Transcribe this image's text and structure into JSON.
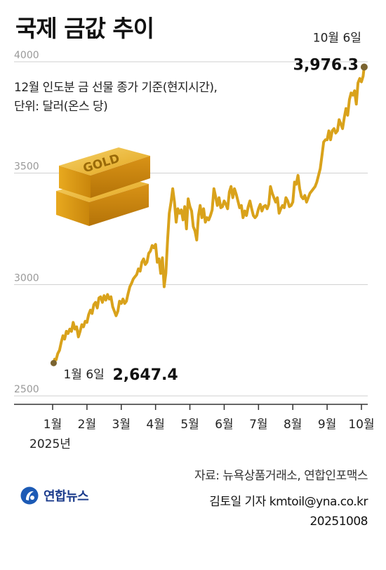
{
  "title": "국제 금값 추이",
  "subtitle_lines": [
    "12월 인도분 금 선물 종가 기준(현지시간),",
    "단위: 달러(온스 당)"
  ],
  "gold_bar_text": "GOLD",
  "source": "자료: 뉴욕상품거래소, 연합인포맥스",
  "reporter": "김토일 기자 kmtoil@yna.co.kr",
  "date": "20251008",
  "logo_text": "연합뉴스",
  "colors": {
    "line": "#d9a21b",
    "endpoint": "#7a6330",
    "grid": "#cfcfcf",
    "axis": "#333333"
  },
  "chart_data": {
    "type": "line",
    "title": "국제 금값 추이",
    "ylim": [
      2500,
      4000
    ],
    "yticks": [
      2500,
      3000,
      3500,
      4000
    ],
    "ytick_labels": [
      "2500",
      "3000",
      "3500",
      "4000"
    ],
    "xtick_labels": [
      "1월",
      "2월",
      "3월",
      "4월",
      "5월",
      "6월",
      "7월",
      "8월",
      "9월",
      "10월"
    ],
    "x_year_label": "2025년",
    "grid": true,
    "annotations": {
      "start": {
        "date_label": "1월 6일",
        "value_label": "2,647.4",
        "value": 2647.4
      },
      "end": {
        "date_label": "10월 6일",
        "value_label": "3,976.3",
        "value": 3976.3
      }
    },
    "series": [
      {
        "values": [
          [
            1.03,
            2647.4
          ],
          [
            1.06,
            2665
          ],
          [
            1.1,
            2662
          ],
          [
            1.15,
            2690
          ],
          [
            1.2,
            2705
          ],
          [
            1.25,
            2740
          ],
          [
            1.3,
            2770
          ],
          [
            1.35,
            2755
          ],
          [
            1.4,
            2790
          ],
          [
            1.45,
            2780
          ],
          [
            1.5,
            2800
          ],
          [
            1.55,
            2790
          ],
          [
            1.6,
            2830
          ],
          [
            1.65,
            2800
          ],
          [
            1.7,
            2810
          ],
          [
            1.75,
            2765
          ],
          [
            1.8,
            2790
          ],
          [
            1.85,
            2820
          ],
          [
            1.9,
            2810
          ],
          [
            1.95,
            2835
          ],
          [
            2.0,
            2830
          ],
          [
            2.05,
            2865
          ],
          [
            2.1,
            2885
          ],
          [
            2.15,
            2870
          ],
          [
            2.2,
            2910
          ],
          [
            2.25,
            2920
          ],
          [
            2.3,
            2895
          ],
          [
            2.35,
            2940
          ],
          [
            2.4,
            2945
          ],
          [
            2.45,
            2920
          ],
          [
            2.5,
            2950
          ],
          [
            2.55,
            2930
          ],
          [
            2.6,
            2955
          ],
          [
            2.65,
            2935
          ],
          [
            2.7,
            2945
          ],
          [
            2.75,
            2900
          ],
          [
            2.8,
            2880
          ],
          [
            2.85,
            2860
          ],
          [
            2.9,
            2880
          ],
          [
            2.95,
            2925
          ],
          [
            3.0,
            2915
          ],
          [
            3.05,
            2935
          ],
          [
            3.1,
            2915
          ],
          [
            3.15,
            2925
          ],
          [
            3.2,
            2960
          ],
          [
            3.25,
            2990
          ],
          [
            3.3,
            3005
          ],
          [
            3.35,
            3025
          ],
          [
            3.4,
            3035
          ],
          [
            3.45,
            3045
          ],
          [
            3.5,
            3070
          ],
          [
            3.55,
            3060
          ],
          [
            3.6,
            3100
          ],
          [
            3.65,
            3115
          ],
          [
            3.7,
            3090
          ],
          [
            3.75,
            3100
          ],
          [
            3.8,
            3140
          ],
          [
            3.85,
            3150
          ],
          [
            3.9,
            3175
          ],
          [
            3.95,
            3165
          ],
          [
            4.0,
            3180
          ],
          [
            4.05,
            3100
          ],
          [
            4.1,
            3115
          ],
          [
            4.15,
            3050
          ],
          [
            4.2,
            3120
          ],
          [
            4.25,
            2990
          ],
          [
            4.3,
            3050
          ],
          [
            4.35,
            3200
          ],
          [
            4.4,
            3320
          ],
          [
            4.45,
            3370
          ],
          [
            4.5,
            3430
          ],
          [
            4.55,
            3370
          ],
          [
            4.6,
            3280
          ],
          [
            4.65,
            3340
          ],
          [
            4.7,
            3320
          ],
          [
            4.75,
            3335
          ],
          [
            4.8,
            3290
          ],
          [
            4.85,
            3350
          ],
          [
            4.9,
            3250
          ],
          [
            4.95,
            3385
          ],
          [
            5.0,
            3350
          ],
          [
            5.05,
            3330
          ],
          [
            5.1,
            3260
          ],
          [
            5.15,
            3240
          ],
          [
            5.2,
            3200
          ],
          [
            5.25,
            3310
          ],
          [
            5.3,
            3355
          ],
          [
            5.35,
            3300
          ],
          [
            5.4,
            3340
          ],
          [
            5.45,
            3280
          ],
          [
            5.5,
            3300
          ],
          [
            5.55,
            3290
          ],
          [
            5.6,
            3310
          ],
          [
            5.65,
            3335
          ],
          [
            5.7,
            3430
          ],
          [
            5.75,
            3395
          ],
          [
            5.8,
            3355
          ],
          [
            5.85,
            3390
          ],
          [
            5.9,
            3345
          ],
          [
            5.95,
            3350
          ],
          [
            6.0,
            3375
          ],
          [
            6.05,
            3360
          ],
          [
            6.1,
            3340
          ],
          [
            6.15,
            3415
          ],
          [
            6.2,
            3440
          ],
          [
            6.25,
            3390
          ],
          [
            6.3,
            3430
          ],
          [
            6.35,
            3405
          ],
          [
            6.4,
            3375
          ],
          [
            6.45,
            3345
          ],
          [
            6.5,
            3355
          ],
          [
            6.55,
            3300
          ],
          [
            6.6,
            3330
          ],
          [
            6.65,
            3310
          ],
          [
            6.7,
            3350
          ],
          [
            6.75,
            3375
          ],
          [
            6.8,
            3340
          ],
          [
            6.85,
            3310
          ],
          [
            6.9,
            3300
          ],
          [
            6.95,
            3310
          ],
          [
            7.0,
            3340
          ],
          [
            7.05,
            3360
          ],
          [
            7.1,
            3330
          ],
          [
            7.15,
            3350
          ],
          [
            7.2,
            3355
          ],
          [
            7.25,
            3340
          ],
          [
            7.3,
            3360
          ],
          [
            7.35,
            3440
          ],
          [
            7.4,
            3410
          ],
          [
            7.45,
            3390
          ],
          [
            7.5,
            3370
          ],
          [
            7.55,
            3390
          ],
          [
            7.6,
            3320
          ],
          [
            7.65,
            3340
          ],
          [
            7.7,
            3355
          ],
          [
            7.75,
            3345
          ],
          [
            7.8,
            3390
          ],
          [
            7.85,
            3375
          ],
          [
            7.9,
            3350
          ],
          [
            7.95,
            3355
          ],
          [
            8.0,
            3370
          ],
          [
            8.05,
            3460
          ],
          [
            8.1,
            3450
          ],
          [
            8.15,
            3490
          ],
          [
            8.2,
            3430
          ],
          [
            8.25,
            3395
          ],
          [
            8.3,
            3385
          ],
          [
            8.35,
            3400
          ],
          [
            8.4,
            3370
          ],
          [
            8.45,
            3390
          ],
          [
            8.5,
            3410
          ],
          [
            8.55,
            3420
          ],
          [
            8.6,
            3430
          ],
          [
            8.65,
            3440
          ],
          [
            8.7,
            3460
          ],
          [
            8.75,
            3490
          ],
          [
            8.8,
            3520
          ],
          [
            8.85,
            3580
          ],
          [
            8.9,
            3640
          ],
          [
            8.95,
            3650
          ],
          [
            9.0,
            3650
          ],
          [
            9.05,
            3690
          ],
          [
            9.1,
            3650
          ],
          [
            9.15,
            3690
          ],
          [
            9.2,
            3700
          ],
          [
            9.25,
            3680
          ],
          [
            9.3,
            3690
          ],
          [
            9.35,
            3740
          ],
          [
            9.4,
            3720
          ],
          [
            9.45,
            3700
          ],
          [
            9.5,
            3750
          ],
          [
            9.55,
            3790
          ],
          [
            9.6,
            3760
          ],
          [
            9.65,
            3830
          ],
          [
            9.7,
            3860
          ],
          [
            9.75,
            3850
          ],
          [
            9.8,
            3870
          ],
          [
            9.85,
            3810
          ],
          [
            9.9,
            3905
          ],
          [
            9.95,
            3925
          ],
          [
            10.0,
            3910
          ],
          [
            10.05,
            3935
          ],
          [
            10.08,
            3976.3
          ]
        ]
      }
    ]
  }
}
